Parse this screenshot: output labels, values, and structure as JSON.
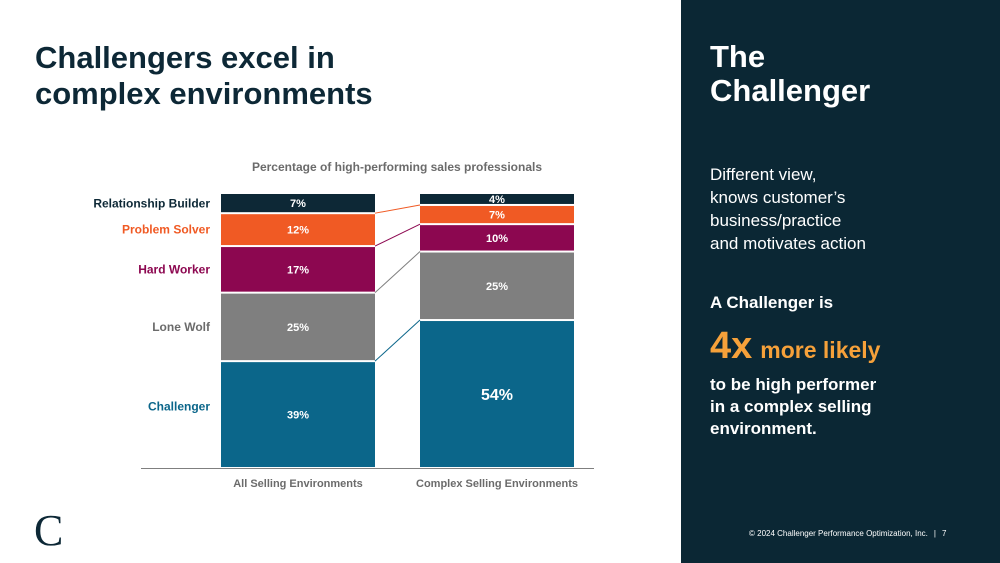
{
  "slide": {
    "title": "Challengers excel in\ncomplex environments"
  },
  "chart_data": {
    "type": "bar",
    "stacked": true,
    "subtitle": "Percentage of high-performing sales professionals",
    "categories": [
      "All Selling Environments",
      "Complex Selling Environments"
    ],
    "series": [
      {
        "name": "Challenger",
        "color": "#0b668a",
        "values": [
          39,
          54
        ],
        "labels": [
          "39%",
          "54%"
        ]
      },
      {
        "name": "Lone Wolf",
        "color": "#7f7f7f",
        "values": [
          25,
          25
        ],
        "labels": [
          "25%",
          "25%"
        ]
      },
      {
        "name": "Hard Worker",
        "color": "#8c0750",
        "values": [
          17,
          10
        ],
        "labels": [
          "17%",
          "10%"
        ]
      },
      {
        "name": "Problem Solver",
        "color": "#f05a24",
        "values": [
          12,
          7
        ],
        "labels": [
          "12%",
          "7%"
        ]
      },
      {
        "name": "Relationship Builder",
        "color": "#0d2836",
        "values": [
          7,
          4
        ],
        "labels": [
          "7%",
          "4%"
        ]
      }
    ],
    "ylim": [
      0,
      100
    ],
    "legend": "left"
  },
  "panel": {
    "title": "The\nChallenger",
    "description": "Different view,\nknows customer’s\nbusiness/practice\nand motivates action",
    "lead": "A Challenger is",
    "stat_number": "4x",
    "stat_suffix": "more likely",
    "tail": "to be high performer\nin a complex selling\nenvironment."
  },
  "footer": {
    "copyright": "© 2024 Challenger Performance Optimization, Inc.",
    "separator": "|",
    "page_number": "7"
  },
  "logo": {
    "letter": "C"
  },
  "colors": {
    "dark_navy": "#0b2734",
    "accent_orange": "#f6a13a"
  }
}
